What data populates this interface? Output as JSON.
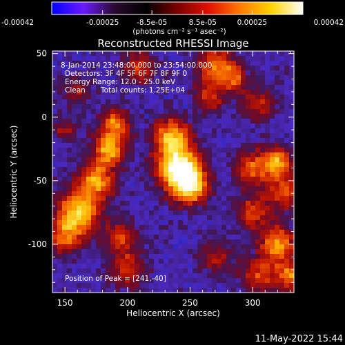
{
  "colorbar": {
    "ticks": [
      "-0.00042",
      "-0.00025",
      "-8.5e-05",
      "8.5e-05",
      "0.00025",
      "0.00042"
    ],
    "tick_values": [
      -0.00042,
      -0.00025,
      -8.5e-05,
      8.5e-05,
      0.00025,
      0.00042
    ],
    "range": [
      -0.00042,
      0.00042
    ],
    "units": "(photons cm⁻² s⁻¹ asec⁻²)",
    "colors": [
      "#0000ff",
      "#6a1aff",
      "#2a0a30",
      "#000000",
      "#7a0000",
      "#e01000",
      "#ff7a00",
      "#ffd400",
      "#ffffff"
    ]
  },
  "image": {
    "title": "Reconstructed RHESSI Image",
    "x_label": "Heliocentric X (arcsec)",
    "y_label": "Heliocentric Y (arcsec)",
    "x_ticks": [
      "150",
      "200",
      "250",
      "300"
    ],
    "x_tick_values": [
      150,
      200,
      250,
      300
    ],
    "y_ticks": [
      "50",
      "0",
      "-50",
      "-100"
    ],
    "y_tick_values": [
      50,
      0,
      -50,
      -100
    ],
    "x_range": [
      140,
      333
    ],
    "y_range": [
      -138,
      52
    ],
    "info": {
      "time_range": "8-Jan-2014 23:48:00.000 to 23:54:00.000",
      "detectors": "Detectors: 3F 4F 5F 6F 7F 8F 9F 0",
      "energy_range": "Energy Range: 12.0 - 25.0 keV",
      "method": "Clean",
      "total_counts": "Total counts: 1.25E+04"
    },
    "peak_label": "Position of Peak = [241,-40]",
    "peak": [
      241,
      -40
    ]
  },
  "timestamp": "11-May-2022 15:44"
}
